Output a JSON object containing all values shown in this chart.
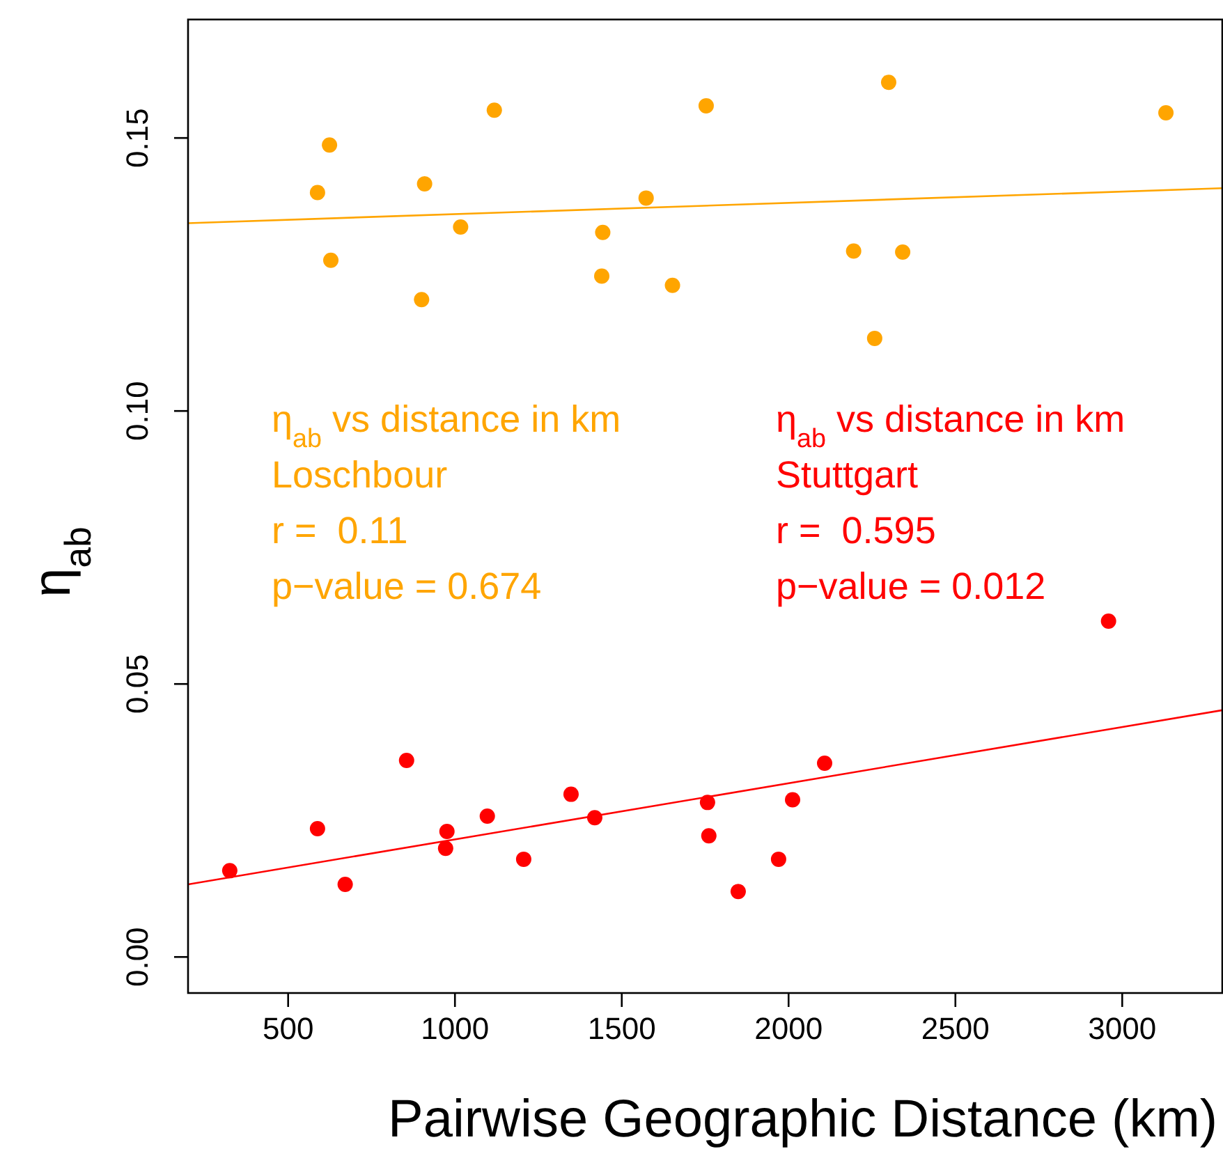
{
  "chart_data": {
    "type": "scatter",
    "xlabel": "Pairwise Geographic Distance (km)",
    "ylabel": "η$_{ab}$",
    "xlim": [
      200,
      3300
    ],
    "ylim": [
      -0.0066,
      0.1717
    ],
    "xticks": [
      500,
      1000,
      1500,
      2000,
      2500,
      3000
    ],
    "yticks": [
      {
        "value": 0,
        "label": "0.00"
      },
      0.05,
      {
        "value": 0.1,
        "label": "0.10"
      },
      0.15
    ],
    "grid": false,
    "marker": "circle",
    "series": [
      {
        "color": "#ffa500",
        "x": [
          588,
          624,
          628,
          909,
          900,
          1017,
          1118,
          1443,
          1440,
          1573,
          1652,
          1753,
          2195,
          2300,
          2342,
          2258,
          3131
        ],
        "values": [
          0.14,
          0.1487,
          0.1276,
          0.1416,
          0.1204,
          0.1337,
          0.1551,
          0.1327,
          0.1247,
          0.139,
          0.123,
          0.1559,
          0.1293,
          0.1602,
          0.1291,
          0.1133,
          0.1546
        ]
      },
      {
        "type": "line",
        "color": "#ffa500",
        "marker": "none",
        "line_style": "solid",
        "x": [
          200,
          3300
        ],
        "values": [
          0.1344,
          0.1408
        ]
      },
      {
        "color": "#ff0000",
        "x": [
          325,
          588,
          671,
          855,
          972,
          976,
          1097,
          1206,
          1348,
          1419,
          1757,
          1761,
          1849,
          1970,
          2012,
          2108,
          2959
        ],
        "values": [
          0.0158,
          0.0235,
          0.0133,
          0.036,
          0.0199,
          0.023,
          0.0258,
          0.0179,
          0.0298,
          0.0255,
          0.0283,
          0.0222,
          0.012,
          0.0179,
          0.0288,
          0.0355,
          0.0615
        ]
      },
      {
        "type": "line",
        "color": "#ff0000",
        "marker": "none",
        "line_style": "solid",
        "x": [
          200,
          3300
        ],
        "values": [
          0.0133,
          0.0452
        ]
      }
    ],
    "annotations": [
      "η$_{ab}$ vs distance in km\nLoschbour\nr =  0.11\np−value = 0.674",
      "η$_{ab}$ vs distance in km\nStuttgart\nr =  0.595\np−value = 0.012"
    ]
  }
}
